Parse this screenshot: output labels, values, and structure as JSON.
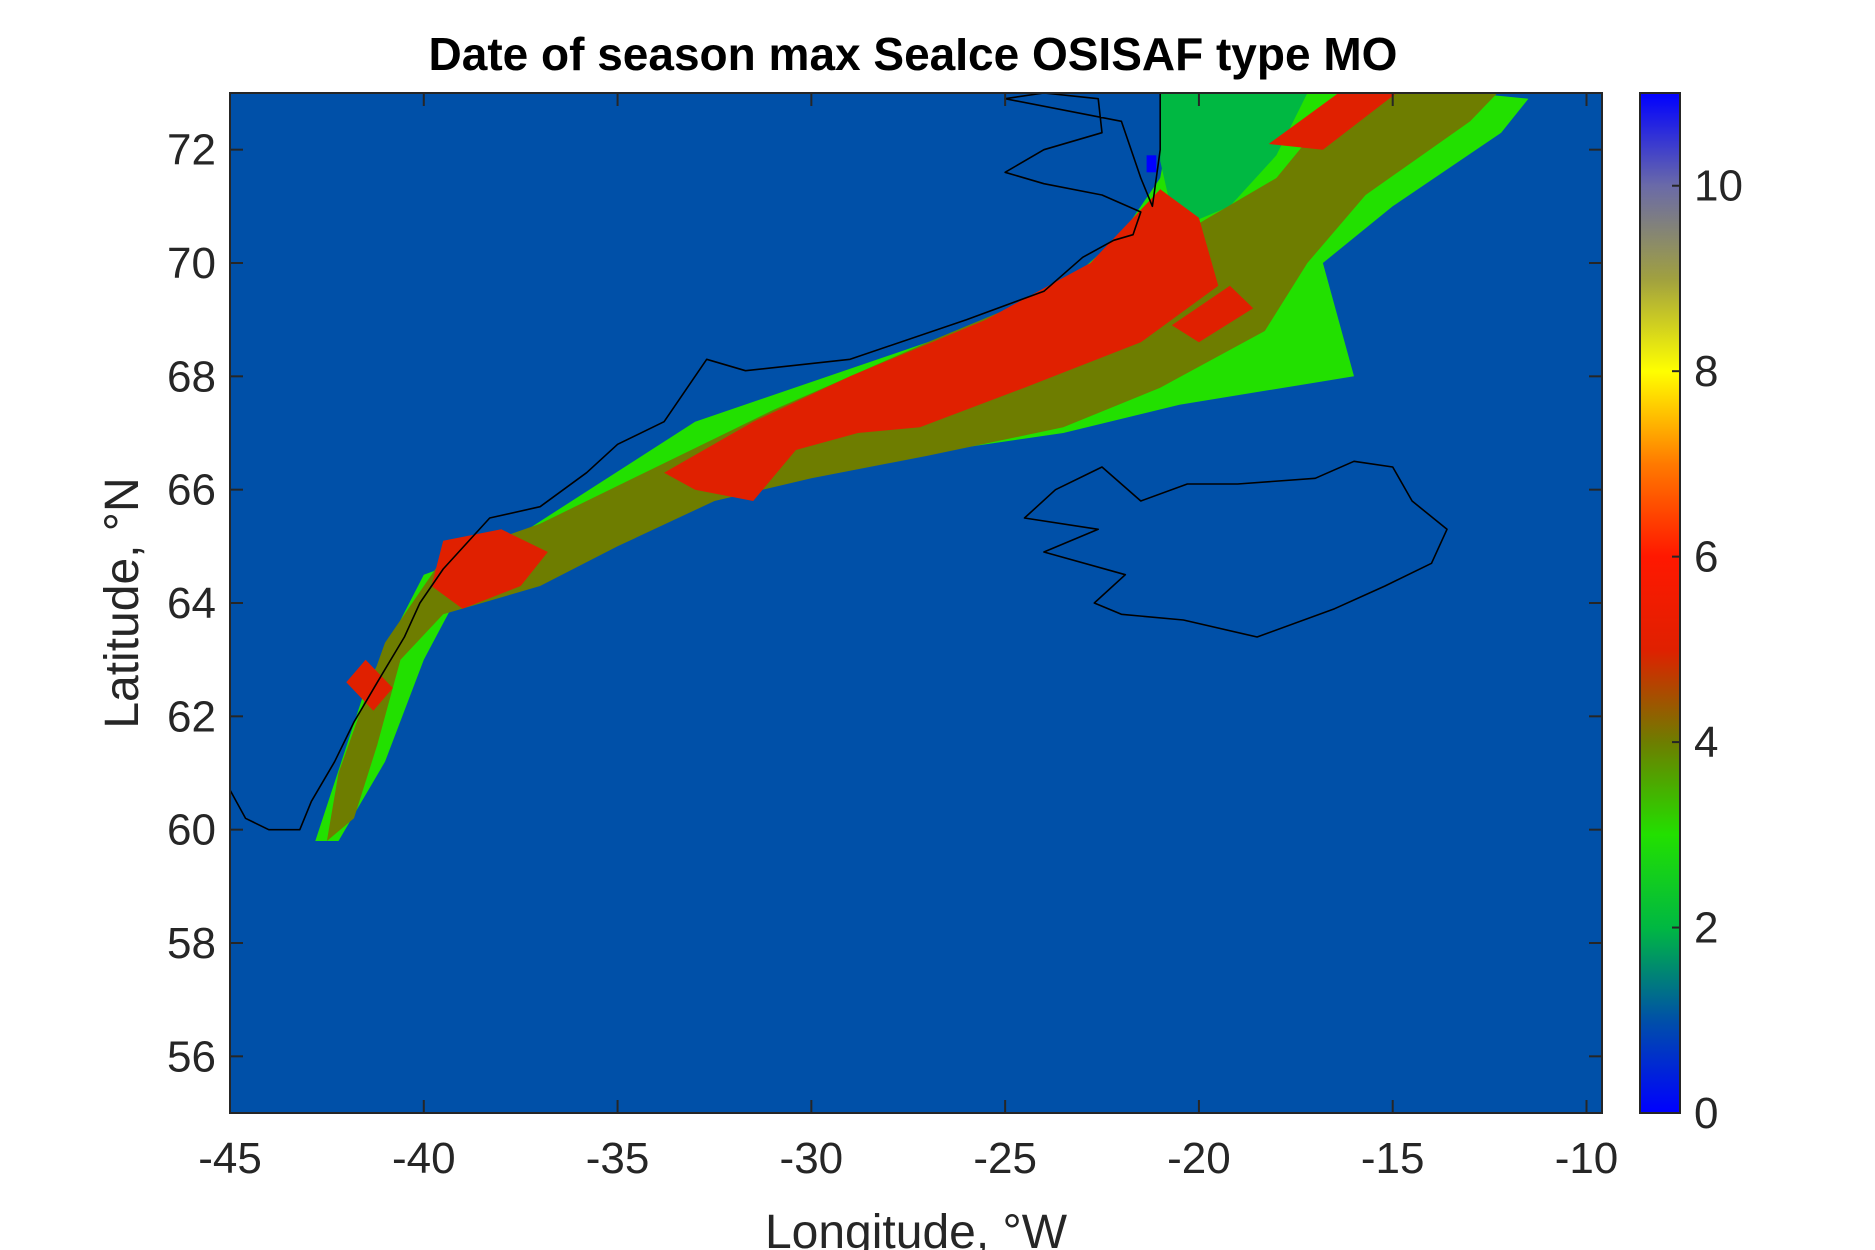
{
  "chart_data": {
    "type": "heatmap",
    "title": "Date of season max SeaIce OSISAF type MO",
    "xlabel": "Longitude, °W",
    "ylabel": "Latitude, °N",
    "xlim": [
      -45,
      -9.6
    ],
    "ylim": [
      55,
      73
    ],
    "x_ticks": [
      -45,
      -40,
      -35,
      -30,
      -25,
      -20,
      -15,
      -10
    ],
    "y_ticks": [
      56,
      58,
      60,
      62,
      64,
      66,
      68,
      70,
      72
    ],
    "x_tick_labels": [
      "-45",
      "-40",
      "-35",
      "-30",
      "-25",
      "-20",
      "-15",
      "-10"
    ],
    "y_tick_labels": [
      "56",
      "58",
      "60",
      "62",
      "64",
      "66",
      "68",
      "70",
      "72"
    ],
    "colorbar": {
      "range": [
        0,
        11
      ],
      "ticks": [
        0,
        2,
        4,
        6,
        8,
        10
      ],
      "tick_labels": [
        "0",
        "2",
        "4",
        "6",
        "8",
        "10"
      ],
      "colormap": [
        {
          "value": 0,
          "color": "#0000ff"
        },
        {
          "value": 1,
          "color": "#0050a8"
        },
        {
          "value": 2,
          "color": "#00b842"
        },
        {
          "value": 3,
          "color": "#22e000"
        },
        {
          "value": 4,
          "color": "#6e7d00"
        },
        {
          "value": 5,
          "color": "#e02000"
        },
        {
          "value": 6,
          "color": "#ff1800"
        },
        {
          "value": 7,
          "color": "#ff7a00"
        },
        {
          "value": 8,
          "color": "#ffff00"
        },
        {
          "value": 9,
          "color": "#a0a040"
        },
        {
          "value": 10,
          "color": "#6a6aa8"
        },
        {
          "value": 11,
          "color": "#0000ff"
        }
      ]
    },
    "background_value": 1,
    "regions": [
      {
        "value": 3,
        "polygon": [
          [
            -42.8,
            59.8
          ],
          [
            -42.2,
            59.8
          ],
          [
            -41.0,
            61.2
          ],
          [
            -40.0,
            63.0
          ],
          [
            -39.3,
            63.9
          ],
          [
            -37.5,
            64.5
          ],
          [
            -35.0,
            65.2
          ],
          [
            -32.5,
            66.0
          ],
          [
            -30.0,
            66.4
          ],
          [
            -26.5,
            66.7
          ],
          [
            -23.5,
            67.0
          ],
          [
            -20.5,
            67.5
          ],
          [
            -16.0,
            68.0
          ],
          [
            -16.8,
            70.0
          ],
          [
            -15.0,
            71.0
          ],
          [
            -12.2,
            72.3
          ],
          [
            -11.5,
            72.9
          ],
          [
            -13.0,
            73.0
          ],
          [
            -20.6,
            73.0
          ],
          [
            -21.0,
            71.5
          ],
          [
            -22.0,
            70.5
          ],
          [
            -24.0,
            69.3
          ],
          [
            -27.0,
            68.6
          ],
          [
            -30.0,
            67.9
          ],
          [
            -33.0,
            67.2
          ],
          [
            -35.5,
            66.1
          ],
          [
            -38.0,
            65.0
          ],
          [
            -40.0,
            64.5
          ],
          [
            -41.5,
            62.5
          ]
        ]
      },
      {
        "value": 2,
        "polygon": [
          [
            -21.0,
            73.0
          ],
          [
            -17.2,
            73.0
          ],
          [
            -18.0,
            71.9
          ],
          [
            -19.2,
            71.0
          ],
          [
            -20.6,
            70.6
          ],
          [
            -21.0,
            71.8
          ]
        ]
      },
      {
        "value": 4,
        "polygon": [
          [
            -42.5,
            59.8
          ],
          [
            -41.8,
            60.2
          ],
          [
            -41.2,
            61.5
          ],
          [
            -40.6,
            63.0
          ],
          [
            -39.5,
            63.8
          ],
          [
            -37.0,
            64.3
          ],
          [
            -35.0,
            65.0
          ],
          [
            -32.5,
            65.8
          ],
          [
            -30.0,
            66.2
          ],
          [
            -27.0,
            66.6
          ],
          [
            -23.5,
            67.1
          ],
          [
            -21.0,
            67.8
          ],
          [
            -18.3,
            68.8
          ],
          [
            -17.2,
            70.0
          ],
          [
            -15.7,
            71.2
          ],
          [
            -13.0,
            72.5
          ],
          [
            -12.3,
            73.0
          ],
          [
            -16.2,
            73.0
          ],
          [
            -18.0,
            71.5
          ],
          [
            -20.5,
            70.5
          ],
          [
            -23.5,
            69.6
          ],
          [
            -27.0,
            68.6
          ],
          [
            -31.0,
            67.4
          ],
          [
            -34.0,
            66.4
          ],
          [
            -37.0,
            65.4
          ],
          [
            -39.5,
            64.8
          ],
          [
            -41.0,
            63.3
          ],
          [
            -42.2,
            61.0
          ]
        ]
      },
      {
        "value": 5,
        "polygon": [
          [
            -42.0,
            62.6
          ],
          [
            -41.3,
            62.1
          ],
          [
            -40.8,
            62.5
          ],
          [
            -41.5,
            63.0
          ]
        ]
      },
      {
        "value": 5,
        "polygon": [
          [
            -39.8,
            64.3
          ],
          [
            -39.0,
            63.9
          ],
          [
            -37.5,
            64.3
          ],
          [
            -36.8,
            64.9
          ],
          [
            -38.0,
            65.3
          ],
          [
            -39.5,
            65.1
          ]
        ]
      },
      {
        "value": 5,
        "polygon": [
          [
            -33.0,
            66.0
          ],
          [
            -31.5,
            65.8
          ],
          [
            -30.4,
            66.7
          ],
          [
            -28.8,
            67.0
          ],
          [
            -27.2,
            67.1
          ],
          [
            -24.5,
            67.8
          ],
          [
            -21.5,
            68.6
          ],
          [
            -19.5,
            69.6
          ],
          [
            -20.0,
            70.8
          ],
          [
            -21.0,
            71.3
          ],
          [
            -22.8,
            70.0
          ],
          [
            -25.5,
            69.0
          ],
          [
            -29.0,
            68.0
          ],
          [
            -31.5,
            67.2
          ],
          [
            -33.8,
            66.3
          ]
        ]
      },
      {
        "value": 5,
        "polygon": [
          [
            -20.7,
            68.9
          ],
          [
            -19.2,
            69.6
          ],
          [
            -18.6,
            69.2
          ],
          [
            -20.0,
            68.6
          ]
        ]
      },
      {
        "value": 5,
        "polygon": [
          [
            -18.2,
            72.1
          ],
          [
            -16.4,
            73.0
          ],
          [
            -14.9,
            73.0
          ],
          [
            -16.8,
            72.0
          ]
        ]
      },
      {
        "value": 0,
        "polygon": [
          [
            -21.35,
            71.9
          ],
          [
            -21.1,
            71.9
          ],
          [
            -21.1,
            71.6
          ],
          [
            -21.35,
            71.6
          ]
        ]
      }
    ],
    "coastlines": [
      {
        "name": "Greenland",
        "points": [
          [
            -45.0,
            60.7
          ],
          [
            -44.6,
            60.2
          ],
          [
            -44.0,
            60.0
          ],
          [
            -43.2,
            60.0
          ],
          [
            -42.9,
            60.5
          ],
          [
            -42.3,
            61.2
          ],
          [
            -41.8,
            61.9
          ],
          [
            -41.2,
            62.6
          ],
          [
            -40.5,
            63.4
          ],
          [
            -40.1,
            64.0
          ],
          [
            -39.5,
            64.6
          ],
          [
            -38.3,
            65.5
          ],
          [
            -37.0,
            65.7
          ],
          [
            -35.8,
            66.3
          ],
          [
            -35.0,
            66.8
          ],
          [
            -33.8,
            67.2
          ],
          [
            -32.7,
            68.3
          ],
          [
            -31.7,
            68.1
          ],
          [
            -29.0,
            68.3
          ],
          [
            -26.0,
            69.0
          ],
          [
            -24.0,
            69.5
          ],
          [
            -23.0,
            70.1
          ],
          [
            -22.2,
            70.4
          ],
          [
            -21.7,
            70.5
          ],
          [
            -21.5,
            70.9
          ],
          [
            -22.5,
            71.2
          ],
          [
            -24.0,
            71.4
          ],
          [
            -25.0,
            71.6
          ],
          [
            -24.0,
            72.0
          ],
          [
            -22.5,
            72.3
          ],
          [
            -22.6,
            72.9
          ],
          [
            -24.0,
            73.0
          ],
          [
            -25.0,
            72.9
          ],
          [
            -22.0,
            72.5
          ],
          [
            -21.5,
            71.5
          ],
          [
            -21.2,
            71.0
          ],
          [
            -21.0,
            72.0
          ],
          [
            -21.0,
            73.0
          ]
        ]
      },
      {
        "name": "Iceland",
        "points": [
          [
            -24.5,
            65.5
          ],
          [
            -23.7,
            66.0
          ],
          [
            -22.5,
            66.4
          ],
          [
            -21.5,
            65.8
          ],
          [
            -20.3,
            66.1
          ],
          [
            -19.0,
            66.1
          ],
          [
            -17.0,
            66.2
          ],
          [
            -16.0,
            66.5
          ],
          [
            -15.0,
            66.4
          ],
          [
            -14.5,
            65.8
          ],
          [
            -13.6,
            65.3
          ],
          [
            -14.0,
            64.7
          ],
          [
            -15.2,
            64.3
          ],
          [
            -16.5,
            63.9
          ],
          [
            -18.5,
            63.4
          ],
          [
            -20.4,
            63.7
          ],
          [
            -22.0,
            63.8
          ],
          [
            -22.7,
            64.0
          ],
          [
            -21.9,
            64.5
          ],
          [
            -24.0,
            64.9
          ],
          [
            -22.6,
            65.3
          ]
        ]
      }
    ]
  }
}
